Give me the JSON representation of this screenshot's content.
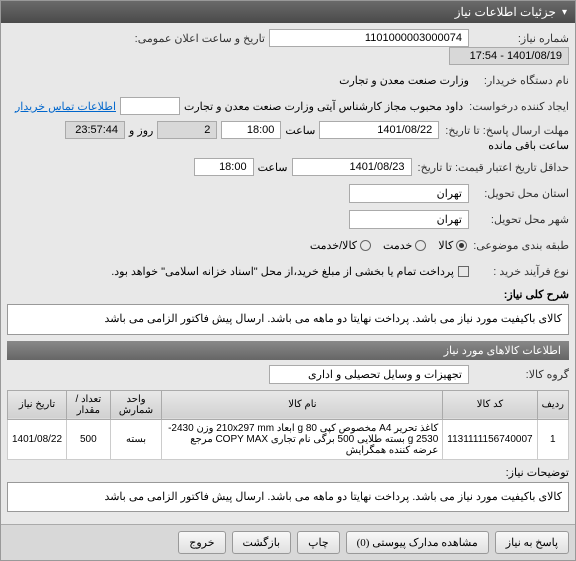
{
  "header": {
    "title": "جزئیات اطلاعات نیاز"
  },
  "fields": {
    "need_no_lbl": "شماره نیاز:",
    "need_no": "1101000003000074",
    "ann_time_lbl": "تاریخ و ساعت اعلان عمومی:",
    "ann_time": "1401/08/19 - 17:54",
    "buyer_lbl": "نام دستگاه خریدار:",
    "buyer": "وزارت صنعت معدن و تجارت",
    "requester_lbl": "ایجاد کننده درخواست:",
    "requester": "داود محبوب مجاز کارشناس آیتی وزارت صنعت معدن و تجارت",
    "contact_link": "اطلاعات تماس خریدار",
    "deadline_lbl": "مهلت ارسال پاسخ: تا تاریخ:",
    "deadline_date": "1401/08/22",
    "time_lbl": "ساعت",
    "deadline_time": "18:00",
    "days_remain": "2",
    "days_lbl": "روز و",
    "time_remain": "23:57:44",
    "remain_lbl": "ساعت باقی مانده",
    "valid_lbl": "حداقل تاریخ اعتبار قیمت: تا تاریخ:",
    "valid_date": "1401/08/23",
    "valid_time": "18:00",
    "loc_lbl": "استان محل تحویل:",
    "loc": "تهران",
    "city_lbl": "شهر محل تحویل:",
    "city": "تهران",
    "cat_lbl": "طبقه بندی موضوعی:",
    "cat_goods": "کالا",
    "cat_service": "خدمت",
    "cat_both": "کالا/خدمت",
    "process_lbl": "نوع فرآیند خرید :",
    "pay_note": "پرداخت تمام یا بخشی از مبلغ خرید،از محل \"اسناد خزانه اسلامی\" خواهد بود.",
    "desc_lbl": "شرح کلی نیاز:",
    "desc": "کالای باکیفیت مورد نیاز می باشد. پرداخت نهایتا دو ماهه می باشد. ارسال پیش فاکتور الزامی می باشد",
    "items_hdr": "اطلاعات کالاهای مورد نیاز",
    "group_lbl": "گروه کالا:",
    "group": "تجهیزات و وسایل تحصیلی و اداری",
    "notes_lbl": "توضیحات نیاز:",
    "notes": "کالای باکیفیت مورد نیاز می باشد. پرداخت نهایتا دو ماهه می باشد. ارسال پیش فاکتور الزامی می باشد"
  },
  "table": {
    "cols": {
      "row": "ردیف",
      "code": "کد کالا",
      "name": "نام کالا",
      "unit": "واحد شمارش",
      "qty": "تعداد / مقدار",
      "date": "تاریخ نیاز"
    },
    "r1": {
      "row": "1",
      "code": "1131111156740007",
      "name": "کاغذ تحریر A4 مخصوص کپی 80 g ابعاد 210x297 mm وزن 2430-2530 g بسته طلایی 500 برگی نام تجاری COPY MAX مرجع عرضه کننده همگرایش",
      "unit": "بسته",
      "qty": "500",
      "date": "1401/08/22"
    }
  },
  "buttons": {
    "respond": "پاسخ به نیاز",
    "attach": "مشاهده مدارک پیوستی (0)",
    "print": "چاپ",
    "back": "بازگشت",
    "exit": "خروج"
  }
}
